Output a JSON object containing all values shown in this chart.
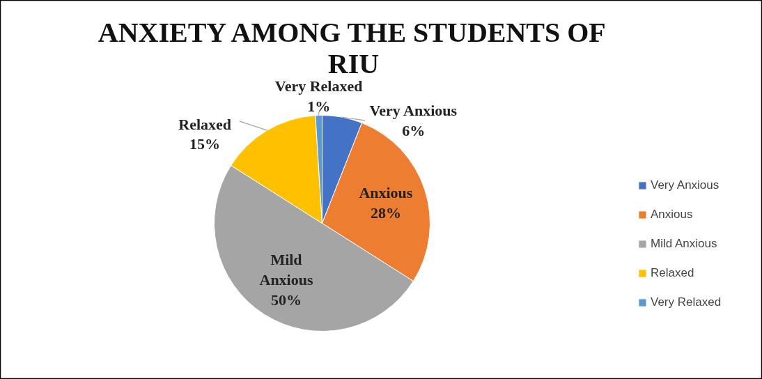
{
  "chart_data": {
    "type": "pie",
    "title": "ANXIETY AMONG THE STUDENTS OF RIU",
    "categories": [
      "Very Anxious",
      "Anxious",
      "Mild Anxious",
      "Relaxed",
      "Very Relaxed"
    ],
    "values": [
      6,
      28,
      50,
      15,
      1
    ],
    "colors": [
      "#4472c4",
      "#ed7d31",
      "#a5a5a5",
      "#ffc000",
      "#5b9bd5"
    ],
    "value_labels": [
      "6%",
      "28%",
      "50%",
      "15%",
      "1%"
    ],
    "legend": "right"
  }
}
